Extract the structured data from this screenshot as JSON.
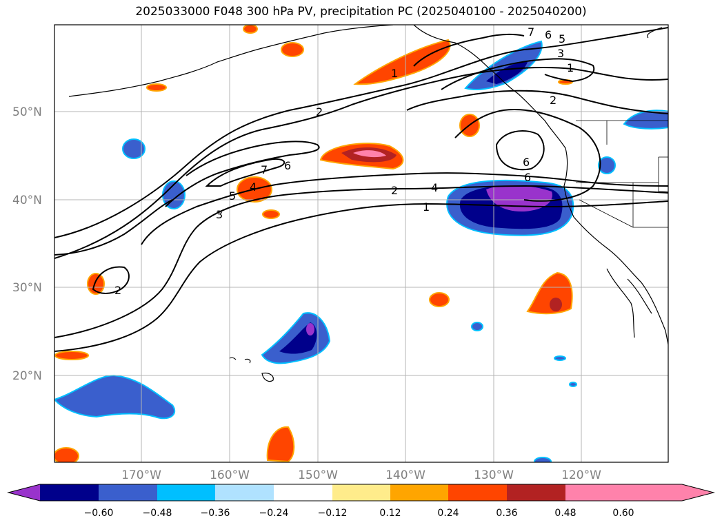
{
  "title": "2025033000 F048 300 hPa PV, precipitation PC (2025040100 - 2025040200)",
  "lat_labels": [
    "50°N",
    "40°N",
    "30°N",
    "20°N"
  ],
  "lon_labels": [
    "170°W",
    "160°W",
    "150°W",
    "140°W",
    "130°W",
    "120°W"
  ],
  "contour_labels": [
    "7",
    "6",
    "5",
    "4",
    "3",
    "1",
    "2",
    "1",
    "2",
    "6",
    "6",
    "7",
    "6",
    "5",
    "3",
    "2",
    "4",
    "1",
    "2"
  ],
  "colorbar": {
    "ticks": [
      "−0.60",
      "−0.48",
      "−0.36",
      "−0.24",
      "−0.12",
      "0.12",
      "0.24",
      "0.36",
      "0.48",
      "0.60"
    ],
    "colors": [
      "#9933cc",
      "#00008b",
      "#3a5fcd",
      "#00bfff",
      "#b0e2ff",
      "#ffffff",
      "#ffec8b",
      "#ffa500",
      "#ff4500",
      "#b22222",
      "#ff82ab",
      "#ff82ab"
    ]
  }
}
